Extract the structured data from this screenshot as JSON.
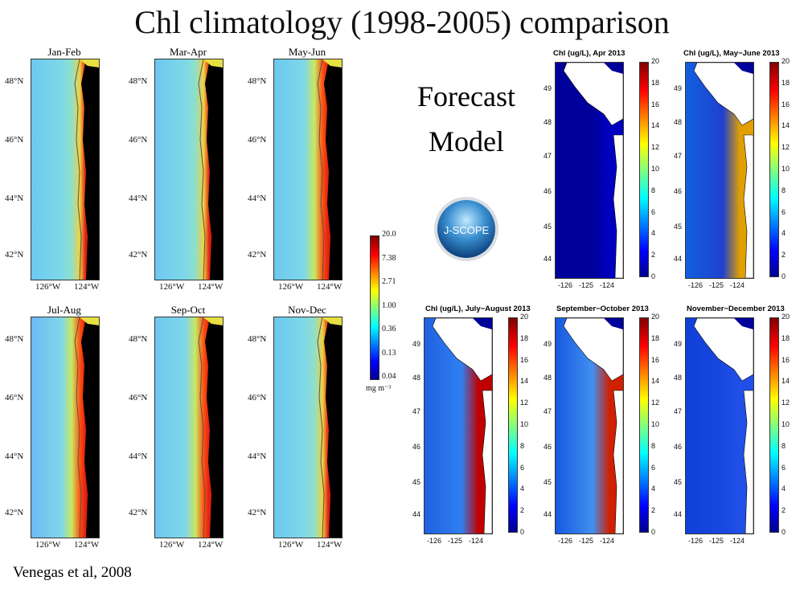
{
  "title": "Chl climatology (1998-2005) comparison",
  "citation": "Venegas et al, 2008",
  "forecast_label": [
    "Forecast",
    "Model"
  ],
  "logo_text": "J-SCOPE",
  "climatology": {
    "panels": [
      "Jan-Feb",
      "Mar-Apr",
      "May-Jun",
      "Jul-Aug",
      "Sep-Oct",
      "Nov-Dec"
    ],
    "lat_ticks": [
      "48°N",
      "46°N",
      "44°N",
      "42°N"
    ],
    "lon_ticks": [
      "126°W",
      "124°W"
    ],
    "colorbar": {
      "ticks": [
        "20.0",
        "7.38",
        "2.71",
        "1.00",
        "0.36",
        "0.13",
        "0.04"
      ],
      "units": "mg m⁻³"
    }
  },
  "model": {
    "panels": [
      "Chl (ug/L), Apr 2013",
      "Chl (ug/L), May−June 2013",
      "Chl (ug/L), July−August 2013",
      "September−October 2013",
      "November−December 2013"
    ],
    "lat_ticks": [
      "49",
      "48",
      "47",
      "46",
      "45",
      "44"
    ],
    "lon_ticks": [
      "-126",
      "-125",
      "-124"
    ],
    "colorbar_ticks": [
      "20",
      "18",
      "16",
      "14",
      "12",
      "10",
      "8",
      "6",
      "4",
      "2",
      "0"
    ]
  },
  "colors": {
    "land_satellite": "#000000",
    "land_model": "#ffffff",
    "colormap": "jet"
  }
}
